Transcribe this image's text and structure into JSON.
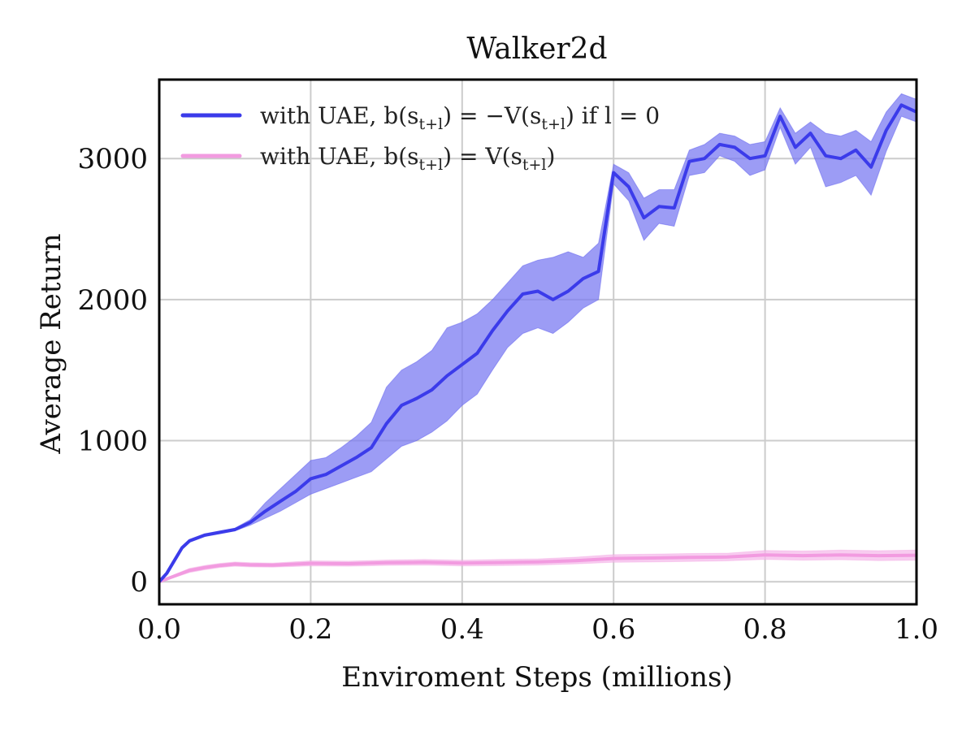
{
  "chart_data": {
    "type": "line",
    "title": "Walker2d",
    "xlabel": "Enviroment Steps (millions)",
    "ylabel": "Average Return",
    "xlim": [
      0.0,
      1.0
    ],
    "ylim": [
      -160,
      3560
    ],
    "xticks": [
      0.0,
      0.2,
      0.4,
      0.6,
      0.8,
      1.0
    ],
    "xtick_labels": [
      "0.0",
      "0.2",
      "0.4",
      "0.6",
      "0.8",
      "1.0"
    ],
    "yticks": [
      0,
      1000,
      2000,
      3000
    ],
    "ytick_labels": [
      "0",
      "1000",
      "2000",
      "3000"
    ],
    "grid": true,
    "legend_position": "top-left",
    "series": [
      {
        "name": "with UAE, b(s_{t+l}) = −V(s_{t+l}) if l = 0",
        "color": "#3b3bea",
        "band_color": "#7b7bf2",
        "x": [
          0.0,
          0.01,
          0.02,
          0.03,
          0.04,
          0.05,
          0.06,
          0.08,
          0.1,
          0.12,
          0.14,
          0.16,
          0.18,
          0.2,
          0.22,
          0.24,
          0.26,
          0.28,
          0.3,
          0.32,
          0.34,
          0.36,
          0.38,
          0.4,
          0.42,
          0.44,
          0.46,
          0.48,
          0.5,
          0.52,
          0.54,
          0.56,
          0.58,
          0.6,
          0.62,
          0.64,
          0.66,
          0.68,
          0.7,
          0.72,
          0.74,
          0.76,
          0.78,
          0.8,
          0.82,
          0.84,
          0.86,
          0.88,
          0.9,
          0.92,
          0.94,
          0.96,
          0.98,
          1.0
        ],
        "mean": [
          0,
          60,
          150,
          240,
          290,
          310,
          330,
          350,
          370,
          420,
          500,
          570,
          640,
          730,
          760,
          820,
          880,
          950,
          1120,
          1250,
          1300,
          1360,
          1460,
          1540,
          1620,
          1780,
          1920,
          2040,
          2060,
          2000,
          2060,
          2150,
          2200,
          2900,
          2800,
          2580,
          2660,
          2650,
          2980,
          3000,
          3100,
          3080,
          3000,
          3020,
          3300,
          3080,
          3180,
          3020,
          3000,
          3060,
          2940,
          3200,
          3380,
          3330
        ],
        "lower": [
          0,
          55,
          145,
          230,
          280,
          300,
          320,
          340,
          360,
          400,
          450,
          500,
          560,
          620,
          660,
          700,
          740,
          780,
          870,
          960,
          1000,
          1060,
          1140,
          1250,
          1330,
          1500,
          1660,
          1760,
          1800,
          1760,
          1840,
          1940,
          2000,
          2820,
          2700,
          2420,
          2540,
          2520,
          2880,
          2900,
          3020,
          2980,
          2880,
          2920,
          3220,
          2960,
          3080,
          2800,
          2830,
          2880,
          2740,
          3050,
          3300,
          3260
        ],
        "upper": [
          0,
          65,
          155,
          250,
          300,
          320,
          340,
          360,
          380,
          440,
          560,
          660,
          760,
          860,
          880,
          950,
          1030,
          1130,
          1380,
          1500,
          1560,
          1640,
          1800,
          1840,
          1900,
          2000,
          2120,
          2240,
          2280,
          2300,
          2340,
          2300,
          2400,
          2960,
          2900,
          2720,
          2780,
          2780,
          3060,
          3100,
          3180,
          3160,
          3100,
          3120,
          3360,
          3180,
          3260,
          3180,
          3160,
          3200,
          3120,
          3330,
          3460,
          3420
        ]
      },
      {
        "name": "with UAE, b(s_{t+l}) = V(s_{t+l})",
        "color": "#f29be0",
        "band_color": "#f5b6ea",
        "x": [
          0.0,
          0.02,
          0.04,
          0.06,
          0.08,
          0.1,
          0.12,
          0.15,
          0.2,
          0.25,
          0.3,
          0.35,
          0.4,
          0.45,
          0.5,
          0.55,
          0.6,
          0.65,
          0.7,
          0.75,
          0.8,
          0.85,
          0.9,
          0.95,
          1.0
        ],
        "mean": [
          0,
          40,
          80,
          100,
          115,
          125,
          120,
          118,
          130,
          128,
          135,
          138,
          132,
          136,
          140,
          150,
          165,
          168,
          172,
          175,
          190,
          185,
          190,
          185,
          188
        ],
        "lower": [
          0,
          30,
          65,
          85,
          100,
          110,
          105,
          104,
          112,
          110,
          116,
          118,
          112,
          114,
          118,
          126,
          138,
          140,
          144,
          148,
          158,
          152,
          156,
          150,
          152
        ],
        "upper": [
          0,
          50,
          95,
          115,
          130,
          140,
          135,
          132,
          148,
          146,
          154,
          158,
          152,
          158,
          162,
          174,
          192,
          196,
          200,
          202,
          222,
          218,
          224,
          220,
          224
        ]
      }
    ]
  },
  "legend": [
    {
      "prefix": "with UAE, b(s",
      "sub1": "t+l",
      "mid": ") = −V(s",
      "sub2": "t+l",
      "suffix": ") if l = 0"
    },
    {
      "prefix": "with UAE, b(s",
      "sub1": "t+l",
      "mid": ") = V(s",
      "sub2": "t+l",
      "suffix": ")"
    }
  ]
}
